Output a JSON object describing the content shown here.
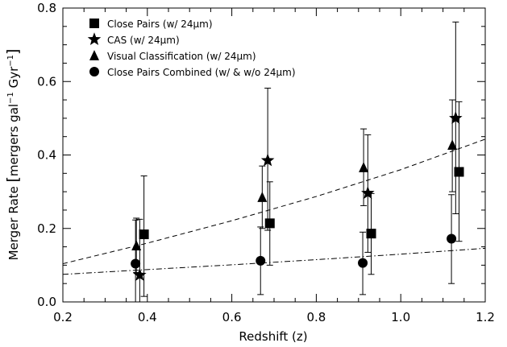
{
  "chart_data": {
    "type": "scatter",
    "title": "",
    "xlabel": "Redshift (z)",
    "ylabel_prefix": "Merger Rate ",
    "ylabel_unit_main": "mergers gal",
    "ylabel_unit_sup1": "−1",
    "ylabel_unit_mid": " Gyr",
    "ylabel_unit_sup2": "−1",
    "xlim": [
      0.2,
      1.2
    ],
    "ylim": [
      0.0,
      0.8
    ],
    "x_ticks": [
      0.2,
      0.4,
      0.6,
      0.8,
      1.0,
      1.2
    ],
    "x_tick_labels": [
      "0.2",
      "0.4",
      "0.6",
      "0.8",
      "1.0",
      "1.2"
    ],
    "y_ticks": [
      0.0,
      0.2,
      0.4,
      0.6,
      0.8
    ],
    "y_tick_labels": [
      "0.0",
      "0.2",
      "0.4",
      "0.6",
      "0.8"
    ],
    "grid": false,
    "legend_position": "top-left",
    "series": [
      {
        "name": "Close Pairs",
        "name_suffix": " (w/ 24",
        "name_unit": "μm",
        "name_end": ")",
        "marker": "square",
        "points": [
          {
            "x": 0.392,
            "y": 0.184,
            "ylo": 0.015,
            "yhi": 0.343
          },
          {
            "x": 0.69,
            "y": 0.214,
            "ylo": 0.1,
            "yhi": 0.327
          },
          {
            "x": 0.93,
            "y": 0.186,
            "ylo": 0.075,
            "yhi": 0.295
          },
          {
            "x": 1.138,
            "y": 0.354,
            "ylo": 0.165,
            "yhi": 0.545
          }
        ]
      },
      {
        "name": "CAS",
        "name_suffix": " (w/ 24",
        "name_unit": "μm",
        "name_end": ")",
        "marker": "star",
        "points": [
          {
            "x": 0.382,
            "y": 0.073,
            "ylo": 0.0,
            "yhi": 0.225
          },
          {
            "x": 0.685,
            "y": 0.385,
            "ylo": 0.195,
            "yhi": 0.582
          },
          {
            "x": 0.922,
            "y": 0.296,
            "ylo": 0.135,
            "yhi": 0.455
          },
          {
            "x": 1.13,
            "y": 0.5,
            "ylo": 0.24,
            "yhi": 0.762
          }
        ]
      },
      {
        "name": "Visual Classification",
        "name_suffix": " (w/ 24",
        "name_unit": "μm",
        "name_end": ")",
        "marker": "triangle",
        "points": [
          {
            "x": 0.374,
            "y": 0.153,
            "ylo": 0.08,
            "yhi": 0.228
          },
          {
            "x": 0.672,
            "y": 0.285,
            "ylo": 0.2,
            "yhi": 0.37
          },
          {
            "x": 0.912,
            "y": 0.366,
            "ylo": 0.262,
            "yhi": 0.471
          },
          {
            "x": 1.122,
            "y": 0.427,
            "ylo": 0.3,
            "yhi": 0.55
          }
        ]
      },
      {
        "name": "Close Pairs Combined",
        "name_suffix": " (w/ & w/o 24",
        "name_unit": "μm",
        "name_end": ")",
        "marker": "circle",
        "points": [
          {
            "x": 0.372,
            "y": 0.104,
            "ylo": 0.0,
            "yhi": 0.223
          },
          {
            "x": 0.668,
            "y": 0.112,
            "ylo": 0.02,
            "yhi": 0.204
          },
          {
            "x": 0.91,
            "y": 0.106,
            "ylo": 0.02,
            "yhi": 0.19
          },
          {
            "x": 1.12,
            "y": 0.172,
            "ylo": 0.05,
            "yhi": 0.292
          }
        ]
      }
    ],
    "fits": [
      {
        "style": "dashed",
        "x": [
          0.2,
          0.4,
          0.6,
          0.8,
          1.0,
          1.2
        ],
        "y": [
          0.104,
          0.16,
          0.221,
          0.287,
          0.36,
          0.443
        ]
      },
      {
        "style": "dashdot",
        "x": [
          0.2,
          0.4,
          0.6,
          0.8,
          1.0,
          1.2
        ],
        "y": [
          0.075,
          0.088,
          0.101,
          0.115,
          0.13,
          0.146
        ]
      }
    ]
  }
}
